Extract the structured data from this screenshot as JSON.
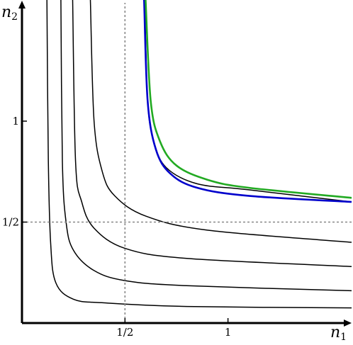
{
  "chart_data": {
    "type": "line",
    "xlabel": "n",
    "xlabel_sub": "1",
    "ylabel": "n",
    "ylabel_sub": "2",
    "x_ticks": [
      {
        "value": 0.5,
        "label": "1/2"
      },
      {
        "value": 1.0,
        "label": "1"
      }
    ],
    "y_ticks": [
      {
        "value": 0.5,
        "label": "1/2"
      },
      {
        "value": 1.0,
        "label": "1"
      }
    ],
    "reference_lines": [
      {
        "axis": "x",
        "value": 0.5,
        "style": "dotted",
        "color": "#888888"
      },
      {
        "axis": "y",
        "value": 0.5,
        "style": "dotted",
        "color": "#888888"
      }
    ],
    "xlim": [
      0,
      1.6
    ],
    "ylim": [
      0,
      1.6
    ],
    "series": [
      {
        "color": "#000000",
        "points": [
          [
            0.121,
            1.6
          ],
          [
            0.128,
            0.8
          ],
          [
            0.139,
            0.4
          ],
          [
            0.164,
            0.2
          ],
          [
            0.25,
            0.118
          ],
          [
            0.4,
            0.1
          ],
          [
            0.8,
            0.082
          ],
          [
            1.6,
            0.075
          ]
        ]
      },
      {
        "color": "#000000",
        "points": [
          [
            0.189,
            1.6
          ],
          [
            0.196,
            0.8
          ],
          [
            0.214,
            0.5
          ],
          [
            0.25,
            0.36
          ],
          [
            0.35,
            0.26
          ],
          [
            0.5,
            0.21
          ],
          [
            0.8,
            0.185
          ],
          [
            1.6,
            0.16
          ]
        ]
      },
      {
        "color": "#000000",
        "points": [
          [
            0.246,
            1.6
          ],
          [
            0.26,
            0.8
          ],
          [
            0.29,
            0.6
          ],
          [
            0.35,
            0.47
          ],
          [
            0.5,
            0.37
          ],
          [
            0.8,
            0.32
          ],
          [
            1.6,
            0.28
          ]
        ]
      },
      {
        "color": "#000000",
        "points": [
          [
            0.332,
            1.6
          ],
          [
            0.35,
            1.0
          ],
          [
            0.39,
            0.75
          ],
          [
            0.45,
            0.63
          ],
          [
            0.6,
            0.53
          ],
          [
            0.9,
            0.46
          ],
          [
            1.6,
            0.4
          ]
        ]
      },
      {
        "color": "#000000",
        "points": [
          [
            0.596,
            1.6
          ],
          [
            0.61,
            1.1
          ],
          [
            0.64,
            0.9
          ],
          [
            0.7,
            0.77
          ],
          [
            0.85,
            0.69
          ],
          [
            1.1,
            0.66
          ],
          [
            1.6,
            0.6
          ]
        ]
      },
      {
        "color": "#0000cc",
        "points": [
          [
            0.593,
            1.6
          ],
          [
            0.61,
            1.1
          ],
          [
            0.65,
            0.86
          ],
          [
            0.72,
            0.74
          ],
          [
            0.85,
            0.67
          ],
          [
            1.1,
            0.63
          ],
          [
            1.6,
            0.6
          ]
        ]
      },
      {
        "color": "#22aa22",
        "points": [
          [
            0.6,
            1.6
          ],
          [
            0.625,
            1.1
          ],
          [
            0.67,
            0.9
          ],
          [
            0.75,
            0.78
          ],
          [
            0.9,
            0.71
          ],
          [
            1.1,
            0.67
          ],
          [
            1.6,
            0.62
          ]
        ]
      }
    ]
  }
}
